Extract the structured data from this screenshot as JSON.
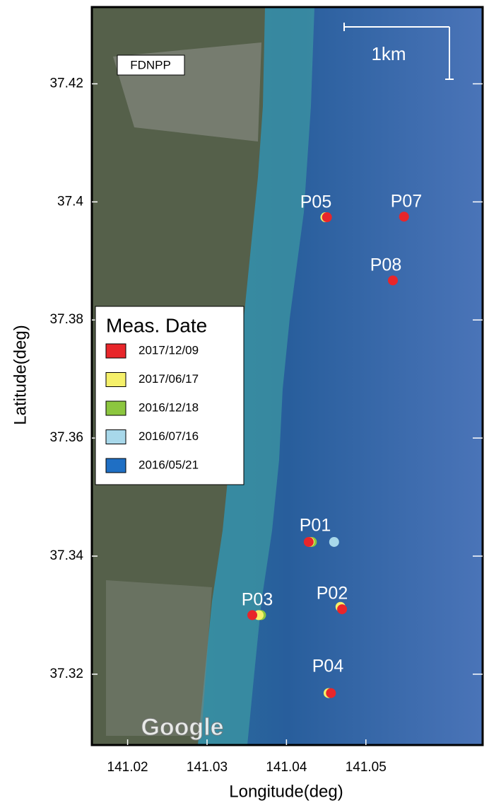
{
  "chart_data": {
    "type": "scatter",
    "xlabel": "Longitude(deg)",
    "ylabel": "Latitude(deg)",
    "xlim": [
      141.0155,
      141.0647
    ],
    "ylim": [
      37.308,
      37.433
    ],
    "xticks": [
      141.02,
      141.03,
      141.04,
      141.05
    ],
    "yticks": [
      37.32,
      37.34,
      37.36,
      37.38,
      37.4,
      37.42
    ],
    "legend_title": "Meas. Date",
    "legend": "left",
    "series": [
      {
        "name": "2016/05/21",
        "color": "#1f6fc4",
        "x": [],
        "y": []
      },
      {
        "name": "2016/07/16",
        "color": "#a8d8ea",
        "x": [
          141.046
        ],
        "y": [
          37.3424
        ]
      },
      {
        "name": "2016/12/18",
        "color": "#8cc63f",
        "x": [
          141.0432,
          141.0368
        ],
        "y": [
          37.3424,
          37.33
        ]
      },
      {
        "name": "2017/06/17",
        "color": "#f5f06a",
        "x": [
          141.0449,
          141.0429,
          141.0468,
          141.0365,
          141.0453
        ],
        "y": [
          37.3974,
          37.3424,
          37.3314,
          37.33,
          37.3168
        ]
      },
      {
        "name": "2017/12/09",
        "color": "#e8262a",
        "x": [
          141.0451,
          141.0548,
          141.0534,
          141.0428,
          141.047,
          141.0357,
          141.0456
        ],
        "y": [
          37.3974,
          37.3975,
          37.3867,
          37.3424,
          37.331,
          37.33,
          37.3168
        ]
      }
    ],
    "annotations": [
      "P05",
      "P07",
      "P08",
      "P01",
      "P02",
      "P03",
      "P04"
    ],
    "site_label": "FDNPP",
    "scale_label": "1km",
    "watermark": "Google"
  }
}
